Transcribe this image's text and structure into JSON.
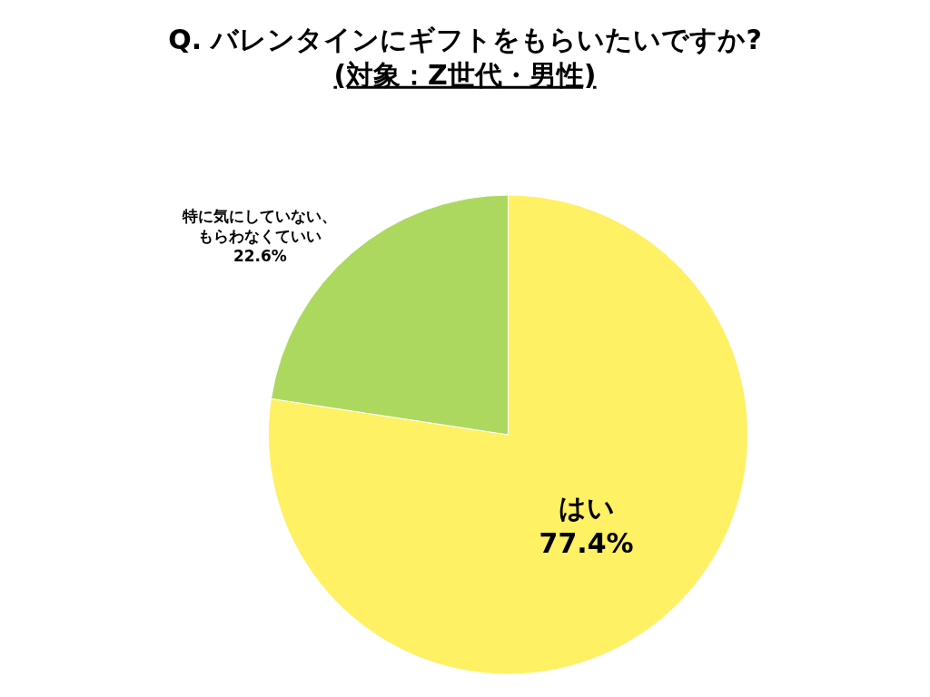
{
  "chart_data": {
    "type": "pie",
    "title": "Q. バレンタインにギフトをもらいたいですか?",
    "subtitle": "(対象：Z世代・男性)",
    "categories": [
      "はい",
      "特に気にしていない、もらわなくていい"
    ],
    "values": [
      77.4,
      22.6
    ],
    "value_labels": [
      "77.4%",
      "22.6%"
    ],
    "colors": [
      "#fff064",
      "#add85f"
    ],
    "legend": false
  }
}
